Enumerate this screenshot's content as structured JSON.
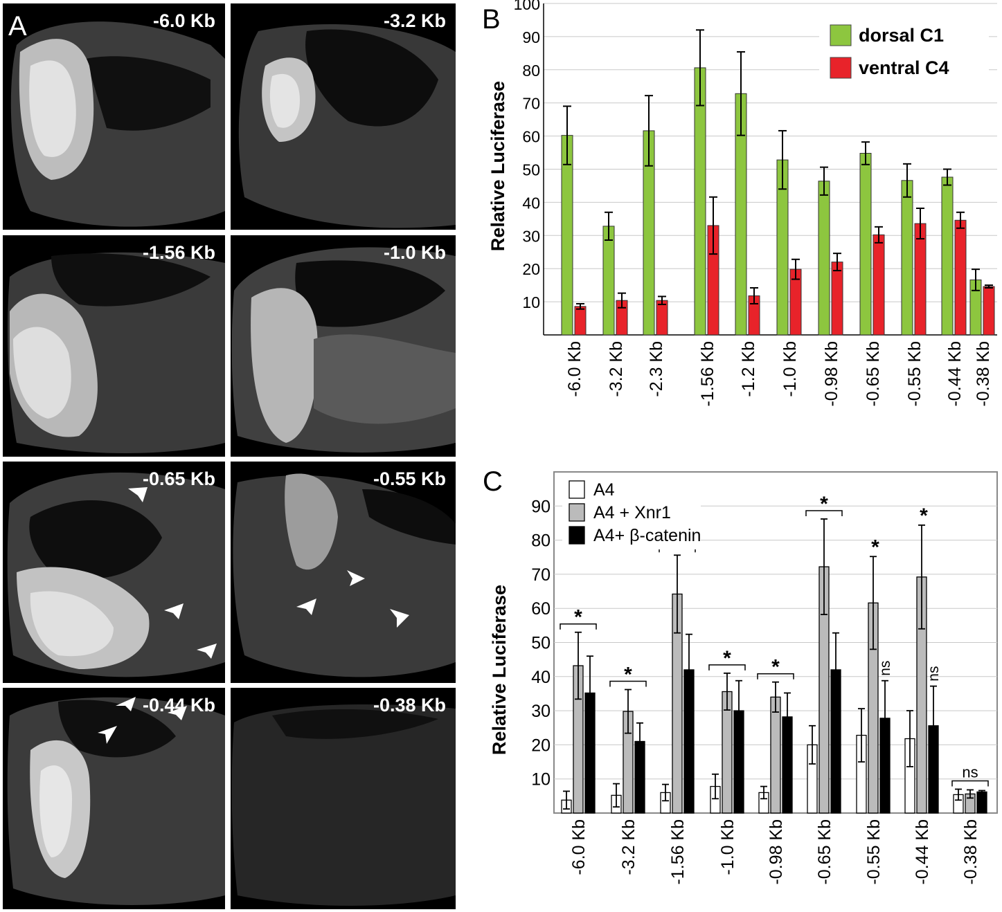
{
  "panels": {
    "a": {
      "letter": "A",
      "tiles": [
        {
          "label": "-6.0 Kb"
        },
        {
          "label": "-3.2 Kb"
        },
        {
          "label": "-1.56 Kb"
        },
        {
          "label": "-1.0 Kb"
        },
        {
          "label": "-0.65 Kb"
        },
        {
          "label": "-0.55 Kb"
        },
        {
          "label": "-0.44 Kb"
        },
        {
          "label": "-0.38 Kb"
        }
      ]
    },
    "b": {
      "letter": "B"
    },
    "c": {
      "letter": "C"
    }
  },
  "chart_data": [
    {
      "type": "bar",
      "ylabel": "Relative Luciferase",
      "ylim": [
        0,
        100
      ],
      "yticks": [
        10,
        20,
        30,
        40,
        50,
        60,
        70,
        80,
        90,
        100
      ],
      "categories": [
        "-6.0 Kb",
        "-3.2 Kb",
        "-2.3 Kb",
        "-1.56 Kb",
        "-1.2 Kb",
        "-1.0 Kb",
        "-0.98 Kb",
        "-0.65 Kb",
        "-0.55 Kb",
        "-0.44 Kb",
        "-0.38 Kb"
      ],
      "series": [
        {
          "name": "dorsal C1",
          "color": "#8dc63f",
          "values": [
            60.2,
            32.8,
            61.6,
            80.6,
            72.8,
            52.8,
            46.4,
            54.8,
            46.6,
            47.6,
            16.6
          ],
          "errors": [
            8.8,
            4.2,
            10.6,
            11.4,
            12.6,
            8.8,
            4.2,
            3.4,
            5.0,
            2.4,
            3.2
          ]
        },
        {
          "name": "ventral C4",
          "color": "#e8232a",
          "values": [
            8.6,
            10.4,
            10.4,
            33.0,
            11.8,
            19.8,
            22.0,
            30.2,
            33.6,
            34.6,
            14.6
          ],
          "errors": [
            0.8,
            2.2,
            1.2,
            8.6,
            2.4,
            3.0,
            2.6,
            2.4,
            4.6,
            2.4,
            0.4
          ]
        }
      ],
      "legend": "top-right",
      "grid": true
    },
    {
      "type": "bar",
      "ylabel": "Relative Luciferase",
      "ylim": [
        0,
        100
      ],
      "yticks": [
        10,
        20,
        30,
        40,
        50,
        60,
        70,
        80,
        90
      ],
      "categories": [
        "-6.0 Kb",
        "-3.2 Kb",
        "-1.56 Kb",
        "-1.0 Kb",
        "-0.98 Kb",
        "-0.65 Kb",
        "-0.55 Kb",
        "-0.44 Kb",
        "-0.38 Kb"
      ],
      "series": [
        {
          "name": "A4",
          "color": "#ffffff",
          "values": [
            3.8,
            5.2,
            6.0,
            7.8,
            6.0,
            20.0,
            22.8,
            21.8,
            5.4
          ],
          "errors": [
            2.6,
            3.4,
            2.4,
            3.6,
            1.8,
            5.6,
            7.8,
            8.2,
            1.6
          ]
        },
        {
          "name": "A4 + Xnr1",
          "color": "#bbbbbb",
          "values": [
            43.2,
            29.8,
            64.2,
            35.6,
            34.0,
            72.2,
            61.6,
            69.2,
            5.6
          ],
          "errors": [
            9.8,
            6.4,
            11.4,
            5.4,
            4.4,
            14.0,
            13.6,
            15.2,
            1.2
          ]
        },
        {
          "name": "A4+ β-catenin",
          "color": "#000000",
          "values": [
            35.2,
            21.0,
            42.0,
            30.0,
            28.2,
            42.0,
            27.8,
            25.6,
            6.2
          ],
          "errors": [
            10.8,
            5.4,
            10.4,
            8.8,
            7.0,
            10.8,
            11.0,
            11.6,
            0.4
          ]
        }
      ],
      "significance": [
        "*",
        "*",
        "*",
        "*",
        "*",
        "*",
        "*",
        "*",
        "ns"
      ],
      "ns_labels": [
        "ns",
        "ns"
      ],
      "legend": "top-left",
      "grid": true
    }
  ]
}
